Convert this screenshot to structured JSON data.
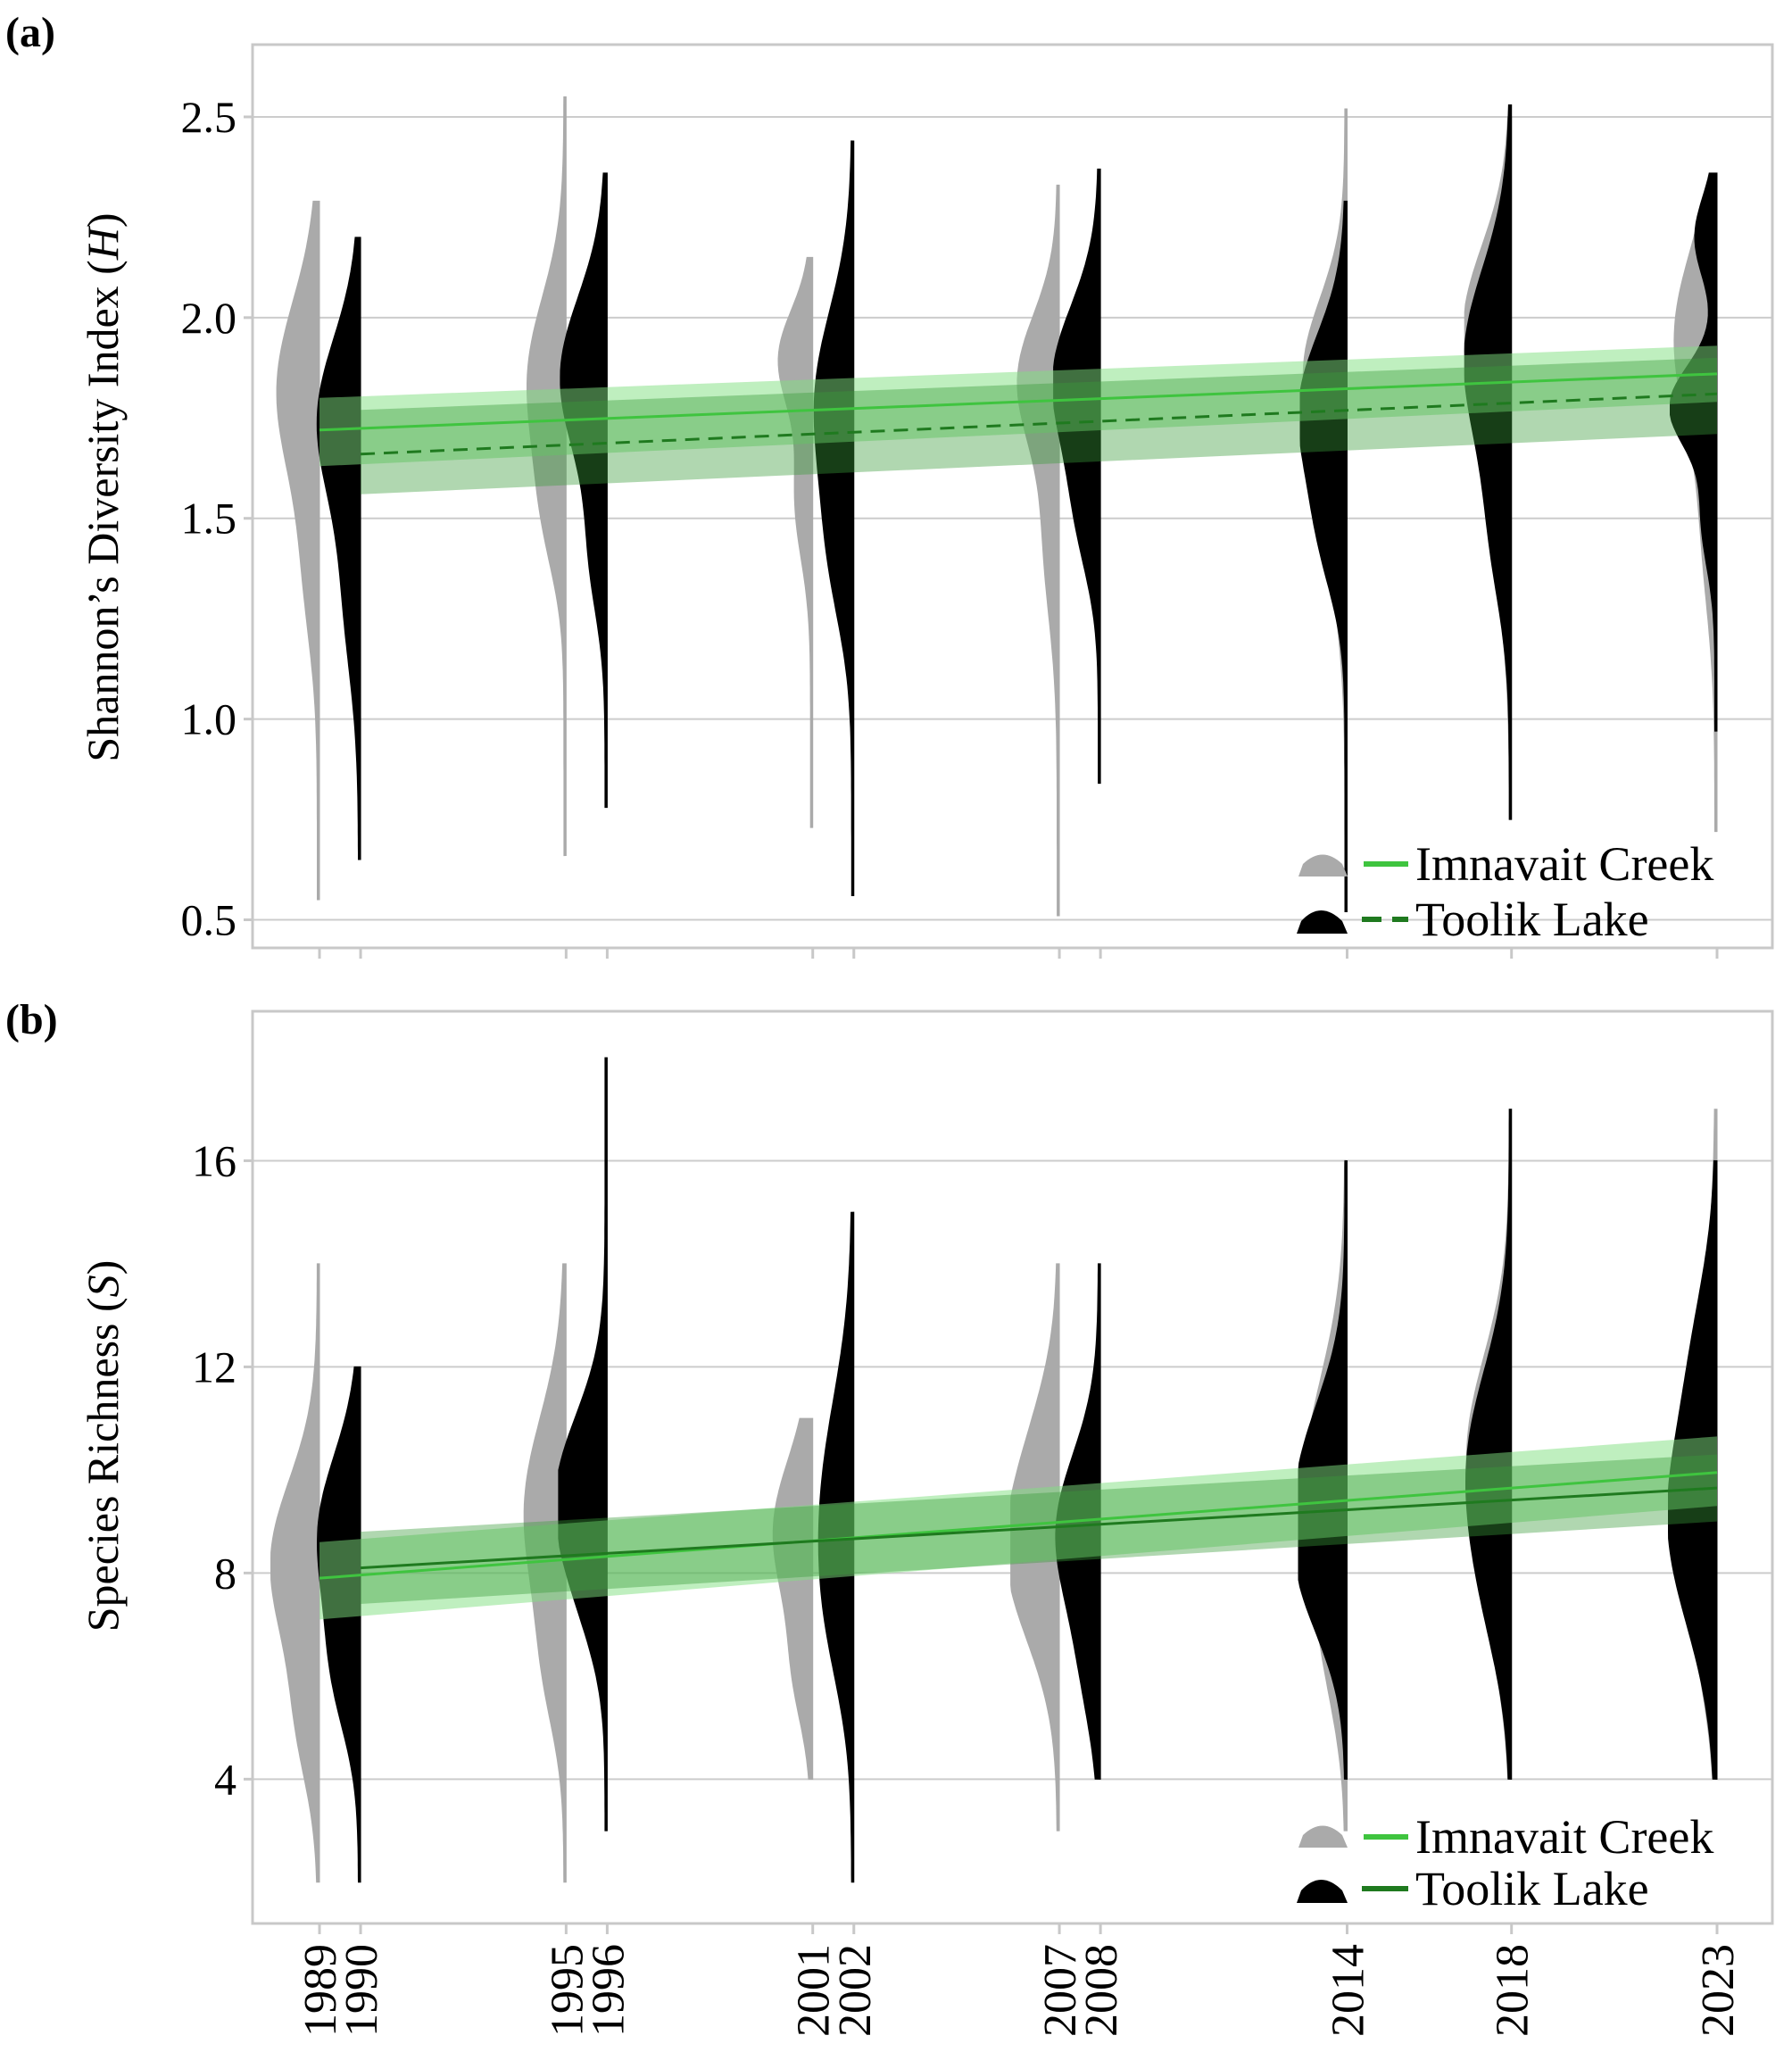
{
  "chart_data": [
    {
      "panel": "(a)",
      "type": "violin",
      "ylabel": "Shannon’s Diversity Index",
      "ylabel_italic": "H",
      "ylim": [
        0.43,
        2.68
      ],
      "yticks": [
        "0.5",
        "1.0",
        "1.5",
        "2.0",
        "2.5"
      ],
      "grid": true,
      "legend_position": "bottom-right",
      "legend": [
        {
          "name": "Imnavait Creek",
          "violin_color": "#aaaaaa",
          "line_color": "#3fc43f",
          "line_style": "solid"
        },
        {
          "name": "Toolik Lake",
          "violin_color": "#000000",
          "line_color": "#1f7a1f",
          "line_style": "dashed"
        }
      ],
      "series": [
        {
          "name": "Imnavait Creek",
          "violins": [
            {
              "year": 1989,
              "min": 0.55,
              "max": 2.29,
              "modes": [
                {
                  "y": 1.82,
                  "w": 0.9,
                  "s": 0.22
                },
                {
                  "y": 1.35,
                  "w": 0.25,
                  "s": 0.18
                }
              ]
            },
            {
              "year": 1995,
              "min": 0.66,
              "max": 2.55,
              "modes": [
                {
                  "y": 1.85,
                  "w": 0.8,
                  "s": 0.2
                },
                {
                  "y": 1.5,
                  "w": 0.35,
                  "s": 0.15
                }
              ]
            },
            {
              "year": 2001,
              "min": 0.73,
              "max": 2.15,
              "modes": [
                {
                  "y": 1.9,
                  "w": 0.7,
                  "s": 0.12
                },
                {
                  "y": 1.55,
                  "w": 0.35,
                  "s": 0.15
                }
              ]
            },
            {
              "year": 2007,
              "min": 0.51,
              "max": 2.33,
              "modes": [
                {
                  "y": 1.85,
                  "w": 0.85,
                  "s": 0.16
                },
                {
                  "y": 1.45,
                  "w": 0.3,
                  "s": 0.2
                }
              ]
            },
            {
              "year": 2014,
              "min": 0.6,
              "max": 2.52,
              "modes": [
                {
                  "y": 1.87,
                  "w": 0.9,
                  "s": 0.18
                },
                {
                  "y": 1.45,
                  "w": 0.3,
                  "s": 0.2
                }
              ]
            },
            {
              "year": 2018,
              "min": 0.75,
              "max": 2.5,
              "modes": [
                {
                  "y": 1.98,
                  "w": 1.0,
                  "s": 0.2
                },
                {
                  "y": 1.5,
                  "w": 0.35,
                  "s": 0.22
                }
              ]
            },
            {
              "year": 2023,
              "min": 0.72,
              "max": 2.25,
              "modes": [
                {
                  "y": 1.95,
                  "w": 0.9,
                  "s": 0.22
                },
                {
                  "y": 1.45,
                  "w": 0.25,
                  "s": 0.2
                }
              ]
            }
          ],
          "trend": {
            "x": [
              1989,
              2023
            ],
            "y": [
              1.72,
              1.86
            ],
            "ci_low": [
              1.63,
              1.79
            ],
            "ci_high": [
              1.8,
              1.93
            ]
          }
        },
        {
          "name": "Toolik Lake",
          "violins": [
            {
              "year": 1990,
              "min": 0.65,
              "max": 2.2,
              "modes": [
                {
                  "y": 1.75,
                  "w": 0.9,
                  "s": 0.2
                },
                {
                  "y": 1.3,
                  "w": 0.3,
                  "s": 0.2
                }
              ]
            },
            {
              "year": 1996,
              "min": 0.78,
              "max": 2.36,
              "modes": [
                {
                  "y": 1.85,
                  "w": 1.0,
                  "s": 0.2
                },
                {
                  "y": 1.4,
                  "w": 0.3,
                  "s": 0.15
                }
              ]
            },
            {
              "year": 2002,
              "min": 0.56,
              "max": 2.44,
              "modes": [
                {
                  "y": 1.8,
                  "w": 0.8,
                  "s": 0.22
                },
                {
                  "y": 1.4,
                  "w": 0.4,
                  "s": 0.18
                }
              ]
            },
            {
              "year": 2008,
              "min": 0.84,
              "max": 2.37,
              "modes": [
                {
                  "y": 1.85,
                  "w": 1.0,
                  "s": 0.18
                },
                {
                  "y": 1.5,
                  "w": 0.4,
                  "s": 0.15
                }
              ]
            },
            {
              "year": 2014,
              "min": 0.52,
              "max": 2.29,
              "modes": [
                {
                  "y": 1.78,
                  "w": 1.0,
                  "s": 0.18
                },
                {
                  "y": 1.45,
                  "w": 0.45,
                  "s": 0.15
                }
              ]
            },
            {
              "year": 2018,
              "min": 0.75,
              "max": 2.53,
              "modes": [
                {
                  "y": 1.9,
                  "w": 1.0,
                  "s": 0.22
                },
                {
                  "y": 1.45,
                  "w": 0.35,
                  "s": 0.18
                }
              ]
            },
            {
              "year": 2023,
              "min": 0.97,
              "max": 2.36,
              "modes": [
                {
                  "y": 1.78,
                  "w": 1.0,
                  "s": 0.1
                },
                {
                  "y": 2.2,
                  "w": 0.45,
                  "s": 0.1
                },
                {
                  "y": 1.5,
                  "w": 0.3,
                  "s": 0.12
                }
              ]
            }
          ],
          "trend": {
            "x": [
              1990,
              2023
            ],
            "y": [
              1.66,
              1.81
            ],
            "ci_low": [
              1.56,
              1.71
            ],
            "ci_high": [
              1.77,
              1.9
            ]
          }
        }
      ]
    },
    {
      "panel": "(b)",
      "type": "violin",
      "ylabel": "Species Richness",
      "ylabel_italic": "S",
      "ylim": [
        1.2,
        18.9
      ],
      "yticks": [
        "4",
        "8",
        "12",
        "16"
      ],
      "grid": true,
      "legend_position": "bottom-right",
      "legend": [
        {
          "name": "Imnavait Creek",
          "violin_color": "#aaaaaa",
          "line_color": "#3fc43f",
          "line_style": "solid"
        },
        {
          "name": "Toolik Lake",
          "violin_color": "#000000",
          "line_color": "#1f7a1f",
          "line_style": "solid"
        }
      ],
      "series": [
        {
          "name": "Imnavait Creek",
          "violins": [
            {
              "year": 1989,
              "min": 2,
              "max": 14,
              "modes": [
                {
                  "y": 8.2,
                  "w": 1.0,
                  "s": 1.6
                },
                {
                  "y": 5,
                  "w": 0.35,
                  "s": 1.2
                }
              ]
            },
            {
              "year": 1995,
              "min": 2,
              "max": 14,
              "modes": [
                {
                  "y": 9.2,
                  "w": 0.85,
                  "s": 1.8
                },
                {
                  "y": 6,
                  "w": 0.3,
                  "s": 1.2
                }
              ]
            },
            {
              "year": 2001,
              "min": 4,
              "max": 11,
              "modes": [
                {
                  "y": 8.8,
                  "w": 0.8,
                  "s": 1.4
                },
                {
                  "y": 6,
                  "w": 0.3,
                  "s": 1.0
                }
              ]
            },
            {
              "year": 2007,
              "min": 3,
              "max": 14,
              "modes": [
                {
                  "y": 8.2,
                  "w": 1.0,
                  "s": 1.6
                },
                {
                  "y": 10.5,
                  "w": 0.35,
                  "s": 1.4
                }
              ]
            },
            {
              "year": 2014,
              "min": 3,
              "max": 16,
              "modes": [
                {
                  "y": 9.8,
                  "w": 0.85,
                  "s": 2.0
                },
                {
                  "y": 6.5,
                  "w": 0.3,
                  "s": 1.4
                }
              ]
            },
            {
              "year": 2018,
              "min": 4,
              "max": 17,
              "modes": [
                {
                  "y": 10.5,
                  "w": 0.85,
                  "s": 1.8
                },
                {
                  "y": 7.5,
                  "w": 0.35,
                  "s": 1.6
                }
              ]
            },
            {
              "year": 2023,
              "min": 4,
              "max": 17,
              "modes": [
                {
                  "y": 10.5,
                  "w": 0.65,
                  "s": 2.2
                },
                {
                  "y": 7,
                  "w": 0.3,
                  "s": 1.5
                }
              ]
            }
          ],
          "trend": {
            "x": [
              1989,
              2023
            ],
            "y": [
              7.9,
              9.95
            ],
            "ci_low": [
              7.1,
              9.3
            ],
            "ci_high": [
              8.6,
              10.65
            ]
          }
        },
        {
          "name": "Toolik Lake",
          "violins": [
            {
              "year": 1990,
              "min": 2,
              "max": 12,
              "modes": [
                {
                  "y": 8.8,
                  "w": 0.85,
                  "s": 1.5
                },
                {
                  "y": 6,
                  "w": 0.45,
                  "s": 1.2
                }
              ]
            },
            {
              "year": 1996,
              "min": 3,
              "max": 18,
              "modes": [
                {
                  "y": 9.6,
                  "w": 1.0,
                  "s": 1.5
                },
                {
                  "y": 7.5,
                  "w": 0.3,
                  "s": 1.2
                }
              ]
            },
            {
              "year": 2002,
              "min": 2,
              "max": 15,
              "modes": [
                {
                  "y": 9.5,
                  "w": 0.6,
                  "s": 2.0
                },
                {
                  "y": 7,
                  "w": 0.3,
                  "s": 1.5
                }
              ]
            },
            {
              "year": 2008,
              "min": 4,
              "max": 14,
              "modes": [
                {
                  "y": 8.8,
                  "w": 0.9,
                  "s": 1.5
                },
                {
                  "y": 6,
                  "w": 0.25,
                  "s": 1.2
                }
              ]
            },
            {
              "year": 2014,
              "min": 4,
              "max": 16,
              "modes": [
                {
                  "y": 10,
                  "w": 0.85,
                  "s": 1.5
                },
                {
                  "y": 7.8,
                  "w": 0.7,
                  "s": 1.3
                }
              ]
            },
            {
              "year": 2018,
              "min": 4,
              "max": 17,
              "modes": [
                {
                  "y": 10.2,
                  "w": 0.85,
                  "s": 1.8
                },
                {
                  "y": 7.5,
                  "w": 0.35,
                  "s": 1.5
                }
              ]
            },
            {
              "year": 2023,
              "min": 4,
              "max": 16,
              "modes": [
                {
                  "y": 9,
                  "w": 1.0,
                  "s": 2.0
                },
                {
                  "y": 12.5,
                  "w": 0.3,
                  "s": 1.5
                }
              ]
            }
          ],
          "trend": {
            "x": [
              1990,
              2023
            ],
            "y": [
              8.1,
              9.65
            ],
            "ci_low": [
              7.4,
              9.0
            ],
            "ci_high": [
              8.8,
              10.3
            ]
          }
        }
      ]
    }
  ],
  "x_axis": {
    "tick_labels": [
      "1989",
      "1990",
      "1995",
      "1996",
      "2001",
      "2002",
      "2007",
      "2008",
      "2014",
      "2018",
      "2023"
    ]
  }
}
